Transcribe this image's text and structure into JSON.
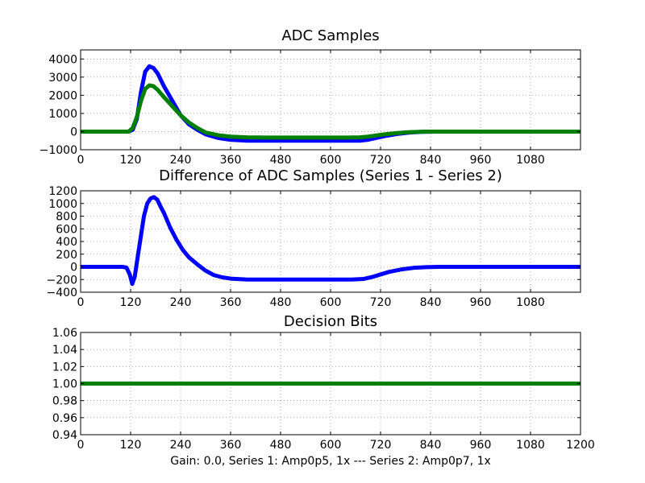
{
  "chart_data": [
    {
      "type": "line",
      "title": "ADC Samples",
      "xlabel": "",
      "ylabel": "",
      "xlim": [
        0,
        1200
      ],
      "ylim": [
        -1000,
        4500
      ],
      "xticks": [
        0,
        120,
        240,
        360,
        480,
        600,
        720,
        840,
        960,
        1080
      ],
      "yticks": [
        -1000,
        0,
        1000,
        2000,
        3000,
        4000
      ],
      "grid": true,
      "legend": "none",
      "series": [
        {
          "color": "#0000ff",
          "x": [
            0,
            100,
            115,
            125,
            135,
            145,
            155,
            165,
            175,
            185,
            200,
            220,
            240,
            260,
            280,
            300,
            330,
            360,
            400,
            450,
            500,
            550,
            600,
            640,
            670,
            690,
            710,
            730,
            760,
            790,
            820,
            850,
            1200
          ],
          "y": [
            0,
            0,
            0,
            100,
            700,
            2200,
            3300,
            3600,
            3500,
            3200,
            2500,
            1700,
            900,
            400,
            100,
            -150,
            -350,
            -450,
            -500,
            -500,
            -500,
            -500,
            -500,
            -500,
            -500,
            -450,
            -350,
            -250,
            -130,
            -50,
            -15,
            0,
            0
          ]
        },
        {
          "color": "#008000",
          "x": [
            0,
            100,
            115,
            125,
            135,
            145,
            155,
            165,
            175,
            185,
            200,
            220,
            240,
            260,
            280,
            300,
            330,
            360,
            400,
            450,
            500,
            550,
            600,
            640,
            670,
            690,
            710,
            730,
            760,
            790,
            820,
            850,
            1200
          ],
          "y": [
            0,
            0,
            0,
            200,
            800,
            1700,
            2350,
            2550,
            2500,
            2300,
            1900,
            1400,
            900,
            500,
            200,
            -50,
            -200,
            -280,
            -320,
            -330,
            -330,
            -330,
            -330,
            -330,
            -320,
            -280,
            -210,
            -150,
            -80,
            -30,
            -10,
            0,
            0
          ]
        }
      ]
    },
    {
      "type": "line",
      "title": "Difference of ADC Samples (Series 1 - Series 2)",
      "xlabel": "",
      "ylabel": "",
      "xlim": [
        0,
        1200
      ],
      "ylim": [
        -400,
        1200
      ],
      "xticks": [
        0,
        120,
        240,
        360,
        480,
        600,
        720,
        840,
        960,
        1080
      ],
      "yticks": [
        -400,
        -200,
        0,
        200,
        400,
        600,
        800,
        1000,
        1200
      ],
      "grid": true,
      "legend": "none",
      "series": [
        {
          "color": "#0000ff",
          "x": [
            0,
            100,
            110,
            118,
            124,
            130,
            138,
            145,
            152,
            160,
            168,
            176,
            184,
            192,
            200,
            215,
            230,
            245,
            260,
            280,
            300,
            320,
            340,
            360,
            400,
            450,
            500,
            550,
            600,
            650,
            680,
            700,
            720,
            740,
            770,
            800,
            830,
            860,
            1200
          ],
          "y": [
            0,
            0,
            -10,
            -120,
            -270,
            -150,
            200,
            500,
            800,
            1000,
            1080,
            1100,
            1060,
            950,
            850,
            620,
            430,
            270,
            150,
            40,
            -60,
            -130,
            -165,
            -185,
            -200,
            -200,
            -200,
            -200,
            -200,
            -200,
            -190,
            -160,
            -120,
            -80,
            -40,
            -15,
            -5,
            0,
            0
          ]
        }
      ]
    },
    {
      "type": "line",
      "title": "Decision Bits",
      "xlabel": "Gain: 0.0, Series 1: Amp0p5, 1x --- Series 2: Amp0p7, 1x",
      "ylabel": "",
      "xlim": [
        0,
        1200
      ],
      "ylim": [
        0.94,
        1.06
      ],
      "xticks": [
        0,
        120,
        240,
        360,
        480,
        600,
        720,
        840,
        960,
        1080,
        1200
      ],
      "yticks": [
        0.94,
        0.96,
        0.98,
        1.0,
        1.02,
        1.04,
        1.06
      ],
      "ytick_labels": [
        "0.94",
        "0.96",
        "0.98",
        "1.00",
        "1.02",
        "1.04",
        "1.06"
      ],
      "grid": true,
      "legend": "none",
      "series": [
        {
          "color": "#008000",
          "x": [
            0,
            1200
          ],
          "y": [
            1.0,
            1.0
          ]
        }
      ]
    }
  ]
}
